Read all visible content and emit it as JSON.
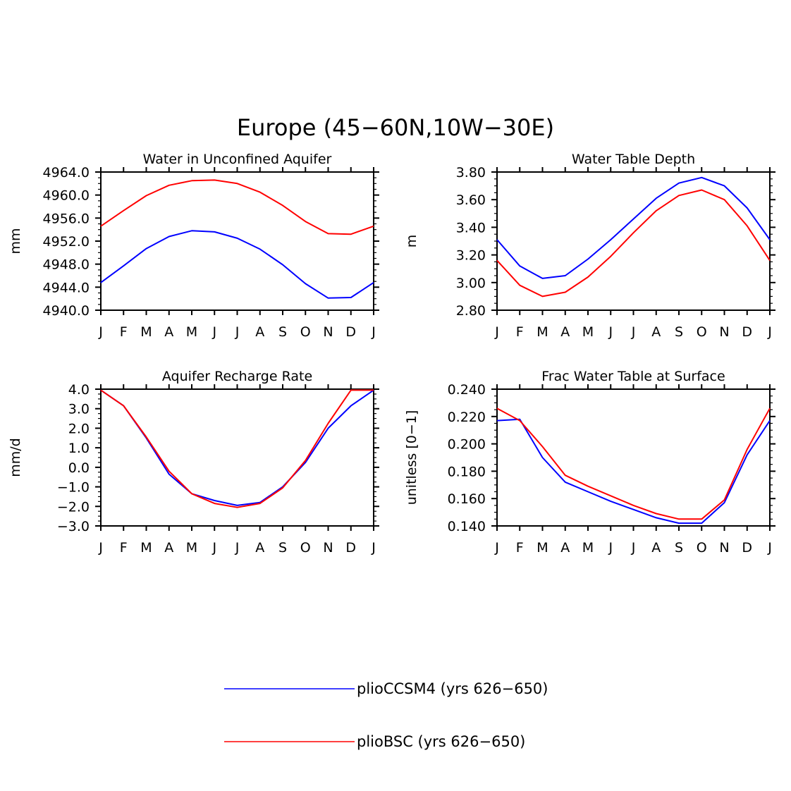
{
  "figure": {
    "title": "Europe (45−60N,10W−30E)"
  },
  "legend": {
    "placement": "bottom-center",
    "items": [
      {
        "label": "plioCCSM4 (yrs 626−650)",
        "color": "#0000ff"
      },
      {
        "label": "plioBSC (yrs 626−650)",
        "color": "#ff0000"
      }
    ]
  },
  "colors": {
    "plioCCSM4": "#0000ff",
    "plioBSC": "#ff0000",
    "axis": "#000000"
  },
  "chart_data": [
    {
      "type": "line",
      "title": "Water in Unconfined Aquifer",
      "ylabel": "mm",
      "xlabel": "",
      "categories": [
        "J",
        "F",
        "M",
        "A",
        "M",
        "J",
        "J",
        "A",
        "S",
        "O",
        "N",
        "D",
        "J"
      ],
      "ylim": [
        4940,
        4964
      ],
      "yticks": [
        "4940.0",
        "4944.0",
        "4948.0",
        "4952.0",
        "4956.0",
        "4960.0",
        "4964.0"
      ],
      "series": [
        {
          "name": "plioCCSM4 (yrs 626−650)",
          "color": "#0000ff",
          "values": [
            4944.8,
            4947.7,
            4950.7,
            4952.8,
            4953.8,
            4953.6,
            4952.5,
            4950.6,
            4947.9,
            4944.6,
            4942.1,
            4942.2,
            4944.8
          ]
        },
        {
          "name": "plioBSC (yrs 626−650)",
          "color": "#ff0000",
          "values": [
            4954.6,
            4957.3,
            4959.9,
            4961.7,
            4962.5,
            4962.6,
            4962.0,
            4960.5,
            4958.2,
            4955.4,
            4953.3,
            4953.2,
            4954.6
          ]
        }
      ]
    },
    {
      "type": "line",
      "title": "Water Table Depth",
      "ylabel": "m",
      "xlabel": "",
      "categories": [
        "J",
        "F",
        "M",
        "A",
        "M",
        "J",
        "J",
        "A",
        "S",
        "O",
        "N",
        "D",
        "J"
      ],
      "ylim": [
        2.8,
        3.8
      ],
      "yticks": [
        "2.80",
        "3.00",
        "3.20",
        "3.40",
        "3.60",
        "3.80"
      ],
      "series": [
        {
          "name": "plioCCSM4 (yrs 626−650)",
          "color": "#0000ff",
          "values": [
            3.31,
            3.12,
            3.03,
            3.05,
            3.17,
            3.31,
            3.46,
            3.61,
            3.72,
            3.76,
            3.7,
            3.54,
            3.31
          ]
        },
        {
          "name": "plioBSC (yrs 626−650)",
          "color": "#ff0000",
          "values": [
            3.16,
            2.98,
            2.9,
            2.93,
            3.04,
            3.19,
            3.36,
            3.52,
            3.63,
            3.67,
            3.6,
            3.41,
            3.16
          ]
        }
      ]
    },
    {
      "type": "line",
      "title": "Aquifer Recharge Rate",
      "ylabel": "mm/d",
      "xlabel": "",
      "categories": [
        "J",
        "F",
        "M",
        "A",
        "M",
        "J",
        "J",
        "A",
        "S",
        "O",
        "N",
        "D",
        "J"
      ],
      "ylim": [
        -3.0,
        4.0
      ],
      "yticks": [
        "−3.0",
        "−2.0",
        "−1.0",
        "0.0",
        "1.0",
        "2.0",
        "3.0",
        "4.0"
      ],
      "series": [
        {
          "name": "plioCCSM4 (yrs 626−650)",
          "color": "#0000ff",
          "values": [
            3.95,
            3.15,
            1.5,
            -0.35,
            -1.35,
            -1.7,
            -1.95,
            -1.8,
            -1.0,
            0.25,
            2.0,
            3.15,
            3.95
          ]
        },
        {
          "name": "plioBSC (yrs 626−650)",
          "color": "#ff0000",
          "values": [
            3.95,
            3.15,
            1.55,
            -0.2,
            -1.35,
            -1.85,
            -2.05,
            -1.85,
            -1.05,
            0.35,
            2.25,
            3.95,
            3.95
          ]
        }
      ]
    },
    {
      "type": "line",
      "title": "Frac Water Table at Surface",
      "ylabel": "unitless [0−1]",
      "xlabel": "",
      "categories": [
        "J",
        "F",
        "M",
        "A",
        "M",
        "J",
        "J",
        "A",
        "S",
        "O",
        "N",
        "D",
        "J"
      ],
      "ylim": [
        0.14,
        0.24
      ],
      "yticks": [
        "0.140",
        "0.160",
        "0.180",
        "0.200",
        "0.220",
        "0.240"
      ],
      "series": [
        {
          "name": "plioCCSM4 (yrs 626−650)",
          "color": "#0000ff",
          "values": [
            0.217,
            0.218,
            0.19,
            0.172,
            0.165,
            0.158,
            0.152,
            0.146,
            0.142,
            0.142,
            0.157,
            0.192,
            0.217
          ]
        },
        {
          "name": "plioBSC (yrs 626−650)",
          "color": "#ff0000",
          "values": [
            0.226,
            0.217,
            0.198,
            0.177,
            0.169,
            0.162,
            0.155,
            0.149,
            0.145,
            0.145,
            0.159,
            0.196,
            0.226
          ]
        }
      ]
    }
  ]
}
